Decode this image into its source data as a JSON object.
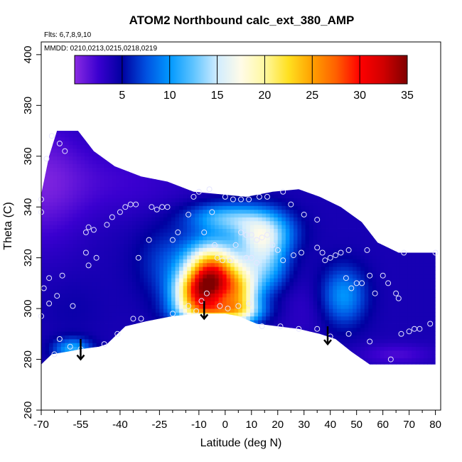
{
  "chart_data": {
    "type": "heatmap",
    "title": "ATOM2 Northbound calc_ext_380_AMP",
    "flights_label": "Flts: 6,7,8,9,10",
    "dates_label": "MMDD: 0210,0213,0215,0218,0219",
    "xlabel": "Latitude (deg N)",
    "ylabel": "Theta (C)",
    "xlim": [
      -70,
      82
    ],
    "ylim": [
      260,
      405
    ],
    "x_ticks": [
      -70,
      -55,
      -40,
      -25,
      -10,
      0,
      10,
      20,
      30,
      40,
      50,
      60,
      70,
      80
    ],
    "x_minor_ticks": [
      -65,
      -60,
      -50,
      -45,
      -35,
      -30,
      -20,
      -15,
      -5,
      5,
      15,
      25,
      35,
      45,
      55,
      65,
      75
    ],
    "x_tick_labels": [
      "-70",
      "-55",
      "-40",
      "-25",
      "-10",
      "0",
      "10",
      "20",
      "30",
      "40",
      "50",
      "60",
      "70",
      "80"
    ],
    "y_ticks": [
      260,
      280,
      300,
      320,
      340,
      360,
      380,
      400
    ],
    "y_tick_labels": [
      "260",
      "280",
      "300",
      "320",
      "340",
      "360",
      "380",
      "400"
    ],
    "colorbar": {
      "range": [
        0,
        35
      ],
      "ticks": [
        5,
        10,
        15,
        20,
        25,
        30,
        35
      ],
      "tick_labels": [
        "5",
        "10",
        "15",
        "20",
        "25",
        "30",
        "35"
      ],
      "stops": [
        {
          "v": 0,
          "c": "#8a2be2"
        },
        {
          "v": 2.5,
          "c": "#3a00d0"
        },
        {
          "v": 5,
          "c": "#0000a0"
        },
        {
          "v": 7.5,
          "c": "#0050e0"
        },
        {
          "v": 10,
          "c": "#0098ff"
        },
        {
          "v": 12.5,
          "c": "#5fc4ff"
        },
        {
          "v": 15,
          "c": "#d0ecff"
        },
        {
          "v": 17.5,
          "c": "#fffbe8"
        },
        {
          "v": 20,
          "c": "#fff8a0"
        },
        {
          "v": 22.5,
          "c": "#ffe020"
        },
        {
          "v": 25,
          "c": "#ffa000"
        },
        {
          "v": 27.5,
          "c": "#ff6000"
        },
        {
          "v": 30,
          "c": "#ff0000"
        },
        {
          "v": 32.5,
          "c": "#d00000"
        },
        {
          "v": 35,
          "c": "#800000"
        }
      ]
    },
    "field": {
      "outline_top": [
        [
          -70,
          345
        ],
        [
          -67,
          360
        ],
        [
          -64,
          370
        ],
        [
          -60,
          370
        ],
        [
          -56,
          370
        ],
        [
          -50,
          362
        ],
        [
          -42,
          356
        ],
        [
          -32,
          352
        ],
        [
          -22,
          350
        ],
        [
          -12,
          346
        ],
        [
          -2,
          345
        ],
        [
          8,
          344
        ],
        [
          18,
          346
        ],
        [
          28,
          347
        ],
        [
          36,
          344
        ],
        [
          44,
          340
        ],
        [
          52,
          334
        ],
        [
          58,
          326
        ],
        [
          66,
          322
        ],
        [
          72,
          322
        ],
        [
          80,
          322
        ]
      ],
      "outline_bottom": [
        [
          -70,
          278
        ],
        [
          -66,
          282
        ],
        [
          -60,
          283
        ],
        [
          -55,
          284
        ],
        [
          -48,
          285
        ],
        [
          -45,
          286
        ],
        [
          -38,
          293
        ],
        [
          -30,
          295
        ],
        [
          -20,
          297
        ],
        [
          -10,
          298
        ],
        [
          -5,
          298
        ],
        [
          0,
          298
        ],
        [
          5,
          297
        ],
        [
          12,
          294
        ],
        [
          20,
          293
        ],
        [
          28,
          292
        ],
        [
          36,
          290
        ],
        [
          42,
          288
        ],
        [
          48,
          283
        ],
        [
          55,
          278
        ],
        [
          65,
          278
        ],
        [
          80,
          278
        ]
      ],
      "background_value": 4,
      "blobs": [
        {
          "x": -70,
          "y": 350,
          "sx": 12,
          "sy": 18,
          "v": -3
        },
        {
          "x": -40,
          "y": 350,
          "sx": 20,
          "sy": 10,
          "v": -1.5
        },
        {
          "x": 0,
          "y": 336,
          "sx": 10,
          "sy": 4,
          "v": 7
        },
        {
          "x": 14,
          "y": 330,
          "sx": 8,
          "sy": 6,
          "v": 10
        },
        {
          "x": -5,
          "y": 312,
          "sx": 7,
          "sy": 9,
          "v": 27
        },
        {
          "x": -12,
          "y": 305,
          "sx": 6,
          "sy": 6,
          "v": 12
        },
        {
          "x": 6,
          "y": 305,
          "sx": 5,
          "sy": 8,
          "v": 12
        },
        {
          "x": -2,
          "y": 299,
          "sx": 10,
          "sy": 3,
          "v": 9
        },
        {
          "x": 15,
          "y": 318,
          "sx": 6,
          "sy": 8,
          "v": 8
        },
        {
          "x": -22,
          "y": 318,
          "sx": 8,
          "sy": 10,
          "v": 3
        },
        {
          "x": 45,
          "y": 305,
          "sx": 6,
          "sy": 8,
          "v": 6
        },
        {
          "x": -58,
          "y": 284,
          "sx": 5,
          "sy": 3,
          "v": 7
        },
        {
          "x": 65,
          "y": 282,
          "sx": 10,
          "sy": 3,
          "v": -2
        },
        {
          "x": 30,
          "y": 300,
          "sx": 8,
          "sy": 8,
          "v": -1
        },
        {
          "x": -58,
          "y": 300,
          "sx": 8,
          "sy": 8,
          "v": 0.5
        }
      ]
    },
    "observations": [
      [
        -66,
        368
      ],
      [
        -63,
        365
      ],
      [
        -61,
        362
      ],
      [
        -68,
        359
      ],
      [
        -70,
        343
      ],
      [
        -70,
        338
      ],
      [
        -69,
        308
      ],
      [
        -67,
        302
      ],
      [
        -70,
        297
      ],
      [
        -67,
        312
      ],
      [
        -64,
        305
      ],
      [
        -62,
        313
      ],
      [
        -58,
        301
      ],
      [
        -63,
        288
      ],
      [
        -65,
        282
      ],
      [
        -59,
        285
      ],
      [
        -55,
        284
      ],
      [
        -46,
        286
      ],
      [
        -52,
        317
      ],
      [
        -49,
        320
      ],
      [
        -53,
        322
      ],
      [
        -53,
        330
      ],
      [
        -50,
        331
      ],
      [
        -52,
        332
      ],
      [
        -45,
        333
      ],
      [
        -43,
        336
      ],
      [
        -40,
        338
      ],
      [
        -38,
        340
      ],
      [
        -36,
        341
      ],
      [
        -34,
        341
      ],
      [
        -28,
        340
      ],
      [
        -26,
        339
      ],
      [
        -24,
        340
      ],
      [
        -22,
        340
      ],
      [
        -20,
        327
      ],
      [
        -14,
        337
      ],
      [
        -12,
        344
      ],
      [
        -10,
        346
      ],
      [
        -6,
        347
      ],
      [
        -35,
        296
      ],
      [
        -29,
        327
      ],
      [
        -33,
        320
      ],
      [
        -20,
        298
      ],
      [
        -18,
        330
      ],
      [
        -5,
        338
      ],
      [
        -8,
        330
      ],
      [
        -4,
        325
      ],
      [
        -3,
        320
      ],
      [
        -1,
        319
      ],
      [
        2,
        319
      ],
      [
        4,
        325
      ],
      [
        6,
        330
      ],
      [
        8,
        329
      ],
      [
        10,
        329
      ],
      [
        12,
        327
      ],
      [
        14,
        328
      ],
      [
        16,
        329
      ],
      [
        8,
        320
      ],
      [
        10,
        320
      ],
      [
        12,
        318
      ],
      [
        9,
        302
      ],
      [
        5,
        301
      ],
      [
        1,
        300
      ],
      [
        0,
        344
      ],
      [
        3,
        343
      ],
      [
        6,
        343
      ],
      [
        9,
        343
      ],
      [
        13,
        344
      ],
      [
        16,
        344
      ],
      [
        22,
        346
      ],
      [
        25,
        341
      ],
      [
        30,
        337
      ],
      [
        35,
        335
      ],
      [
        38,
        319
      ],
      [
        18,
        325
      ],
      [
        20,
        323
      ],
      [
        22,
        319
      ],
      [
        26,
        321
      ],
      [
        29,
        322
      ],
      [
        35,
        324
      ],
      [
        37,
        322
      ],
      [
        40,
        320
      ],
      [
        42,
        321
      ],
      [
        44,
        322
      ],
      [
        47,
        323
      ],
      [
        50,
        310
      ],
      [
        48,
        308
      ],
      [
        46,
        312
      ],
      [
        52,
        310
      ],
      [
        54,
        323
      ],
      [
        55,
        313
      ],
      [
        57,
        306
      ],
      [
        60,
        313
      ],
      [
        62,
        310
      ],
      [
        65,
        306
      ],
      [
        66,
        304
      ],
      [
        68,
        322
      ],
      [
        67,
        290
      ],
      [
        70,
        291
      ],
      [
        72,
        292
      ],
      [
        74,
        292
      ],
      [
        78,
        294
      ],
      [
        80,
        322
      ],
      [
        55,
        287
      ],
      [
        47,
        290
      ],
      [
        40,
        289
      ],
      [
        35,
        292
      ],
      [
        28,
        292
      ],
      [
        21,
        293
      ],
      [
        14,
        293
      ],
      [
        -2,
        301
      ],
      [
        -11,
        299
      ],
      [
        -14,
        301
      ],
      [
        -32,
        296
      ],
      [
        -41,
        290
      ],
      [
        63,
        280
      ],
      [
        -9,
        303
      ],
      [
        -7,
        306
      ]
    ],
    "arrows": [
      {
        "x": -55,
        "y_from": 288,
        "y_to": 280
      },
      {
        "x": -8,
        "y_from": 303,
        "y_to": 296
      },
      {
        "x": 39,
        "y_from": 293,
        "y_to": 286
      }
    ]
  }
}
